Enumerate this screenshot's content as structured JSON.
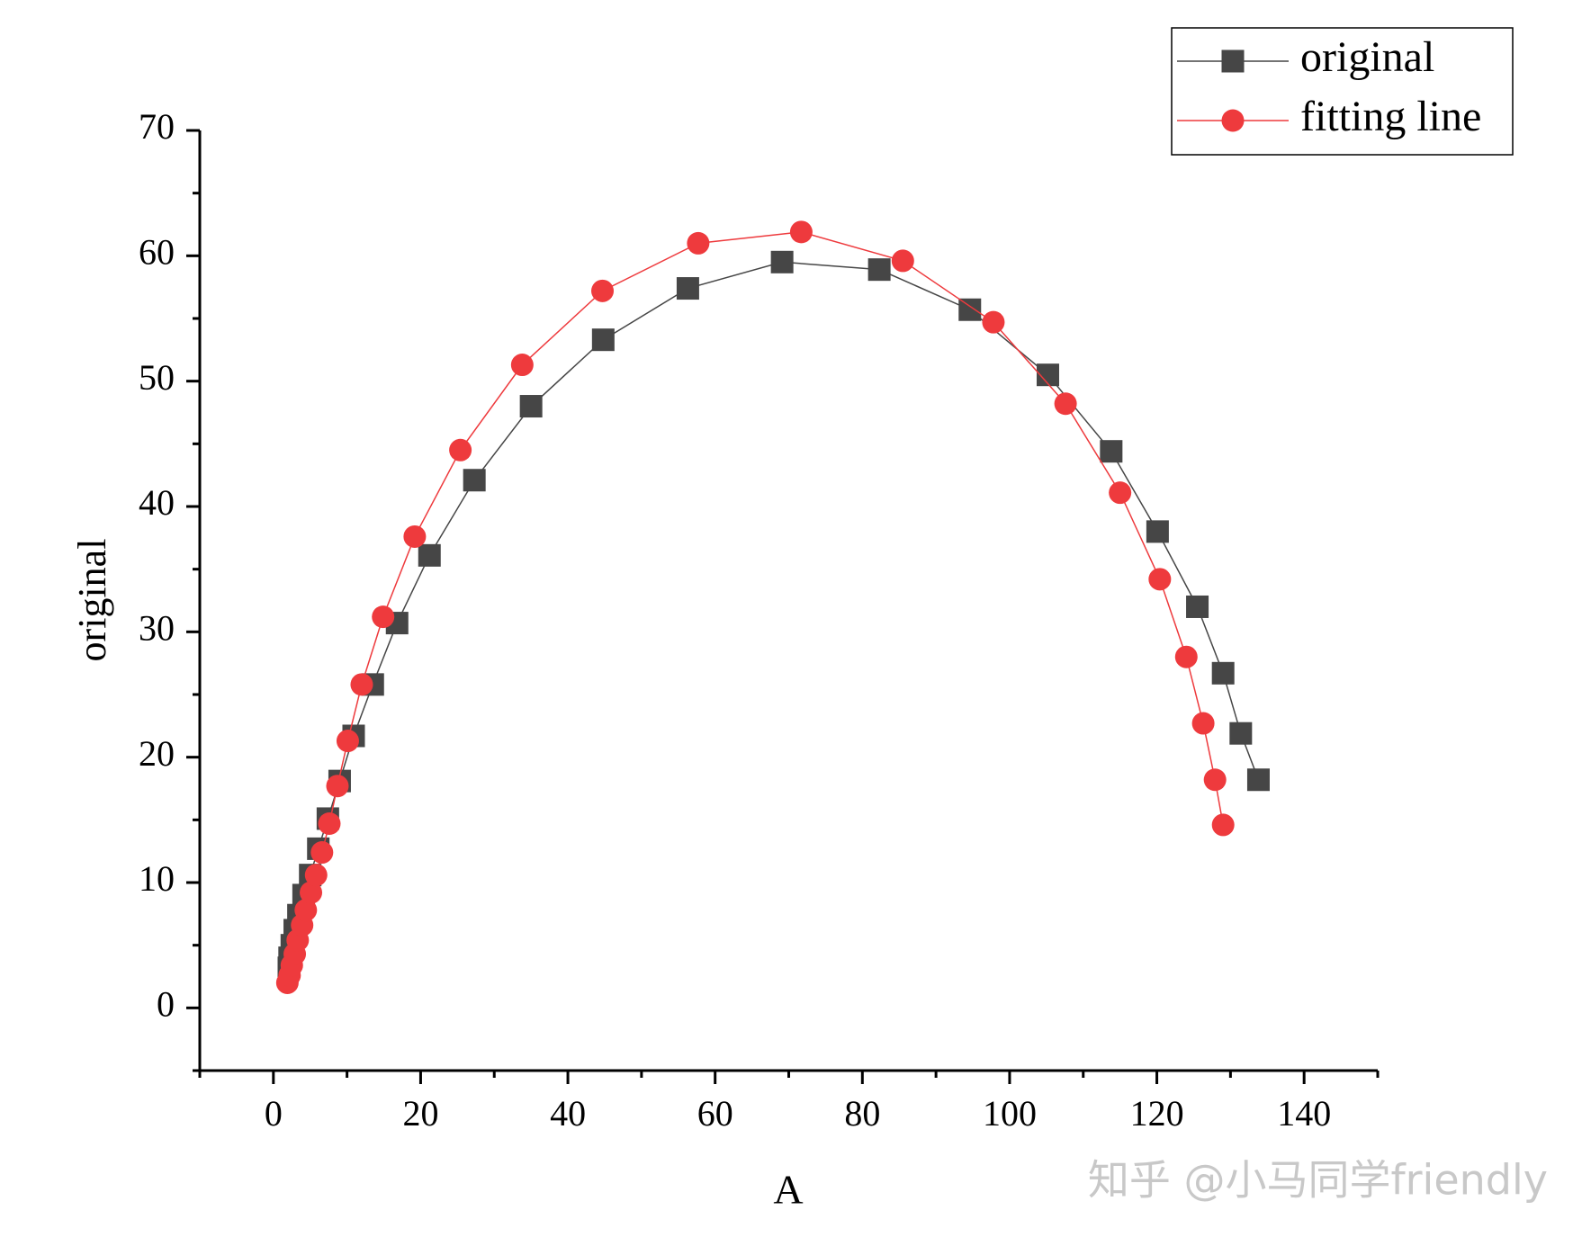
{
  "chart_data": {
    "type": "line",
    "xlabel": "A",
    "ylabel": "original",
    "xlim": [
      -10,
      150
    ],
    "xticks": [
      0,
      20,
      40,
      60,
      80,
      100,
      120,
      140
    ],
    "ylim": [
      -5,
      70
    ],
    "yticks": [
      0,
      10,
      20,
      30,
      40,
      50,
      60,
      70
    ],
    "legend": "upper right",
    "watermark": "知乎 @小马同学friendly",
    "series": [
      {
        "name": "original",
        "color": "#464646",
        "marker": "square",
        "x": [
          2.1,
          2.2,
          2.5,
          2.9,
          3.4,
          4.1,
          5.0,
          6.1,
          7.4,
          9.0,
          10.9,
          13.5,
          16.8,
          21.2,
          27.3,
          35.0,
          44.8,
          56.3,
          69.1,
          82.3,
          94.6,
          105.2,
          113.8,
          120.1,
          125.5,
          129.0,
          131.4,
          133.8
        ],
        "values": [
          3.2,
          4.0,
          5.0,
          6.2,
          7.4,
          9.0,
          10.6,
          12.7,
          15.1,
          18.1,
          21.7,
          25.8,
          30.7,
          36.1,
          42.1,
          48.0,
          53.3,
          57.4,
          59.5,
          58.9,
          55.7,
          50.5,
          44.4,
          38.0,
          32.0,
          26.7,
          21.9,
          18.2
        ]
      },
      {
        "name": "fitting line",
        "color": "#ee3a3d",
        "marker": "circle",
        "x": [
          1.9,
          2.2,
          2.5,
          2.9,
          3.3,
          3.9,
          4.4,
          5.1,
          5.8,
          6.6,
          7.6,
          8.7,
          10.1,
          12.0,
          14.9,
          19.2,
          25.4,
          33.8,
          44.7,
          57.7,
          71.7,
          85.5,
          97.8,
          107.6,
          115.0,
          120.4,
          124.0,
          126.3,
          127.9,
          129.0
        ],
        "values": [
          2.0,
          2.6,
          3.4,
          4.3,
          5.4,
          6.6,
          7.8,
          9.2,
          10.6,
          12.4,
          14.7,
          17.7,
          21.3,
          25.8,
          31.2,
          37.6,
          44.5,
          51.3,
          57.2,
          61.0,
          61.9,
          59.6,
          54.7,
          48.2,
          41.1,
          34.2,
          28.0,
          22.7,
          18.2,
          14.6
        ]
      }
    ]
  }
}
